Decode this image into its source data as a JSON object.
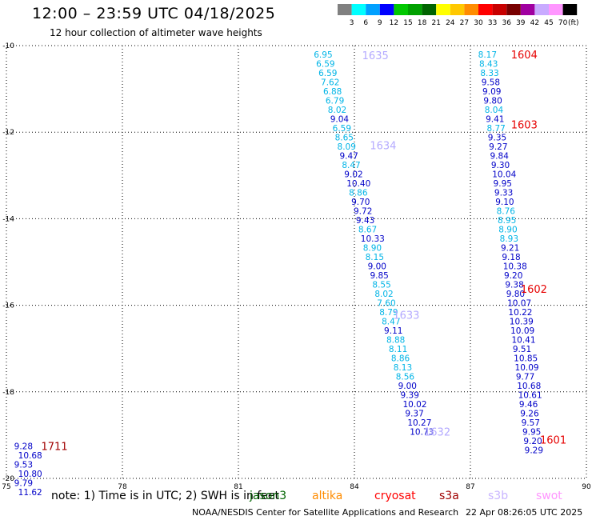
{
  "header": {
    "title": "12:00 – 23:59 UTC 04/18/2025",
    "subtitle": "12 hour collection of altimeter wave heights"
  },
  "colorbar": {
    "unit": "(ft)",
    "bins": [
      {
        "label": "3",
        "color": "#808080"
      },
      {
        "label": "6",
        "color": "#00ffff"
      },
      {
        "label": "9",
        "color": "#00a0ff"
      },
      {
        "label": "12",
        "color": "#0000ff"
      },
      {
        "label": "15",
        "color": "#00c800"
      },
      {
        "label": "18",
        "color": "#00a000"
      },
      {
        "label": "21",
        "color": "#006400"
      },
      {
        "label": "24",
        "color": "#ffff00"
      },
      {
        "label": "27",
        "color": "#ffc800"
      },
      {
        "label": "30",
        "color": "#ff8c00"
      },
      {
        "label": "33",
        "color": "#ff0000"
      },
      {
        "label": "36",
        "color": "#c80000"
      },
      {
        "label": "39",
        "color": "#780000"
      },
      {
        "label": "42",
        "color": "#a000a0"
      },
      {
        "label": "45",
        "color": "#c8aaff"
      },
      {
        "label": "70",
        "color": "#ff96ff"
      },
      {
        "label": "",
        "color": "#000000"
      }
    ]
  },
  "colors": {
    "cyan": "#00b4e6",
    "blue": "#0000c8",
    "lavender": "#b4aaff",
    "red": "#e60000",
    "maroon": "#a00000",
    "grid": "#000000"
  },
  "chart_data": {
    "type": "scatter",
    "xlabel": "",
    "ylabel": "",
    "xlim": [
      75,
      90
    ],
    "ylim": [
      -20,
      -10
    ],
    "x_ticks": [
      75,
      78,
      81,
      84,
      87,
      90
    ],
    "y_ticks": [
      -10,
      -12,
      -14,
      -16,
      -18,
      -20
    ],
    "x_tick_labels": [
      "75",
      "78",
      "81",
      "84",
      "87",
      "90"
    ],
    "y_tick_labels": [
      "-10",
      "-12",
      "-14",
      "-16",
      "-18",
      "-20"
    ],
    "grid": true,
    "tracks": [
      {
        "x": 75.2,
        "y": -19.25,
        "color": "maroon",
        "values": [
          "9.28",
          "10.68",
          "9.53",
          "10.80",
          "9.79",
          "11.62"
        ]
      },
      {
        "x": 82.95,
        "y": -10.2,
        "color": "cyan",
        "values": [
          "6.95",
          "6.59",
          "6.59",
          "7.62",
          "6.88",
          "6.79",
          "8.02",
          "9.04",
          "6.59",
          "8.65",
          "8.09",
          "9.47",
          "8.47",
          "9.02",
          "10.40",
          "8.86",
          "9.70",
          "9.72",
          "9.43",
          "8.67",
          "10.33",
          "8.90",
          "8.15",
          "9.00",
          "9.85",
          "8.55",
          "8.02",
          "7.60",
          "8.79",
          "8.47",
          "9.11",
          "8.88",
          "8.11",
          "8.86",
          "8.13",
          "8.56",
          "9.00",
          "9.39",
          "10.02",
          "9.37",
          "10.27",
          "10.73"
        ]
      },
      {
        "x": 87.2,
        "y": -10.2,
        "color": "cyan",
        "values": [
          "8.17",
          "8.43",
          "8.33",
          "9.58",
          "9.09",
          "9.80",
          "8.04",
          "9.41",
          "8.77",
          "9.35",
          "9.27",
          "9.84",
          "9.30",
          "10.04",
          "9.95",
          "9.33",
          "9.10",
          "8.76",
          "8.95",
          "8.90",
          "8.93",
          "9.21",
          "9.18",
          "10.38",
          "9.20",
          "9.38",
          "9.80",
          "10.07",
          "10.22",
          "10.39",
          "10.09",
          "10.41",
          "9.51",
          "10.85",
          "10.09",
          "9.77",
          "10.68",
          "10.61",
          "9.46",
          "9.26",
          "9.57",
          "9.95",
          "9.20",
          "9.29"
        ]
      }
    ],
    "pass_labels": [
      {
        "text": "1635",
        "x": 84.2,
        "y": -10.22,
        "color": "lavender"
      },
      {
        "text": "1634",
        "x": 84.4,
        "y": -12.3,
        "color": "lavender"
      },
      {
        "text": "1633",
        "x": 85.0,
        "y": -16.22,
        "color": "lavender"
      },
      {
        "text": "1632",
        "x": 85.8,
        "y": -18.92,
        "color": "lavender"
      },
      {
        "text": "1604",
        "x": 88.05,
        "y": -10.2,
        "color": "red"
      },
      {
        "text": "1603",
        "x": 88.05,
        "y": -11.82,
        "color": "red"
      },
      {
        "text": "1602",
        "x": 88.3,
        "y": -15.62,
        "color": "red"
      },
      {
        "text": "1601",
        "x": 88.8,
        "y": -19.1,
        "color": "red"
      },
      {
        "text": "1711",
        "x": 75.9,
        "y": -19.25,
        "color": "maroon"
      }
    ]
  },
  "note": {
    "text": "note: 1) Time is in UTC; 2) SWH is in feet",
    "satellites": [
      {
        "name": "jason3",
        "color": "#006400"
      },
      {
        "name": "altika",
        "color": "#ff8c00"
      },
      {
        "name": "cryosat",
        "color": "#ff0000"
      },
      {
        "name": "s3a",
        "color": "#a00000"
      },
      {
        "name": "s3b",
        "color": "#c8b4ff"
      },
      {
        "name": "swot",
        "color": "#ff96ff"
      }
    ]
  },
  "footer": {
    "credit": "NOAA/NESDIS Center for Satellite Applications and Research",
    "timestamp": "22 Apr 08:26:05 UTC 2025"
  }
}
